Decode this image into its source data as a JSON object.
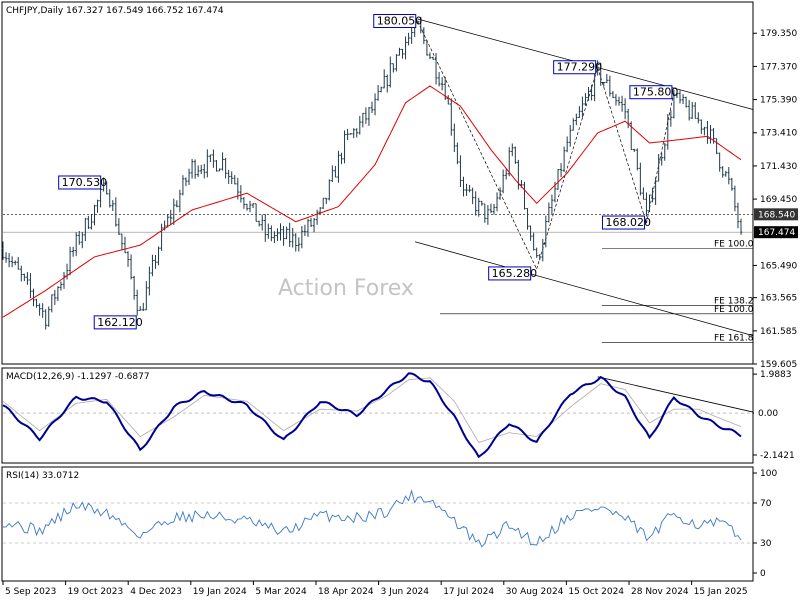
{
  "chart_data": {
    "type": "candlestick",
    "symbol_line": "CHFJPY,Daily  167.327 167.549 166.752 167.474",
    "watermark": "Action Forex",
    "price_axis": {
      "range": [
        159.605,
        181.215
      ],
      "ticks": [
        "179.350",
        "177.370",
        "175.390",
        "173.410",
        "171.430",
        "169.450",
        "165.490",
        "163.565",
        "161.585",
        "159.605"
      ]
    },
    "current_price": {
      "value": 167.474,
      "label": "167.474"
    },
    "level_tag": {
      "value": 168.54,
      "label": "168.540"
    },
    "x_labels": [
      "5 Sep 2023",
      "19 Oct 2023",
      "4 Dec 2023",
      "19 Jan 2024",
      "5 Mar 2024",
      "18 Apr 2024",
      "3 Jun 2024",
      "17 Jul 2024",
      "30 Aug 2024",
      "15 Oct 2024",
      "28 Nov 2024",
      "15 Jan 2025"
    ],
    "swing_labels": [
      {
        "label": "180.050",
        "bar": 136,
        "price": 180.05
      },
      {
        "label": "170.530",
        "bar": 34,
        "price": 170.53
      },
      {
        "label": "162.120",
        "bar": 45,
        "price": 162.12
      },
      {
        "label": "177.290",
        "bar": 195,
        "price": 177.29
      },
      {
        "label": "175.800",
        "bar": 220,
        "price": 175.8
      },
      {
        "label": "168.020",
        "bar": 211,
        "price": 168.02
      },
      {
        "label": "165.280",
        "bar": 175,
        "price": 165.28
      }
    ],
    "fibo_levels": [
      {
        "label": "FE 100.0",
        "price": 166.5
      },
      {
        "label": "FE 138.2",
        "price": 163.1
      },
      {
        "label": "FE 100.0",
        "price": 162.6
      },
      {
        "label": "FE 161.8",
        "price": 160.9
      }
    ],
    "anchors": [
      [
        0,
        166.5
      ],
      [
        14,
        162.4
      ],
      [
        24,
        166.8
      ],
      [
        34,
        170.3
      ],
      [
        45,
        162.6
      ],
      [
        52,
        167.3
      ],
      [
        62,
        171.4
      ],
      [
        72,
        171.7
      ],
      [
        86,
        167.4
      ],
      [
        96,
        167.0
      ],
      [
        104,
        168.5
      ],
      [
        112,
        172.8
      ],
      [
        122,
        175.0
      ],
      [
        130,
        178.4
      ],
      [
        136,
        179.7
      ],
      [
        145,
        176.0
      ],
      [
        151,
        169.8
      ],
      [
        160,
        168.3
      ],
      [
        167,
        172.4
      ],
      [
        175,
        165.7
      ],
      [
        185,
        172.8
      ],
      [
        195,
        177.0
      ],
      [
        204,
        174.7
      ],
      [
        211,
        168.4
      ],
      [
        220,
        175.5
      ],
      [
        231,
        173.6
      ],
      [
        238,
        170.4
      ],
      [
        242,
        167.474
      ]
    ],
    "ma": [
      [
        0,
        162.4
      ],
      [
        14,
        164.0
      ],
      [
        30,
        166.0
      ],
      [
        45,
        166.7
      ],
      [
        62,
        168.8
      ],
      [
        80,
        169.8
      ],
      [
        96,
        168.1
      ],
      [
        110,
        169.0
      ],
      [
        122,
        171.5
      ],
      [
        132,
        175.2
      ],
      [
        140,
        176.2
      ],
      [
        150,
        175.0
      ],
      [
        160,
        172.4
      ],
      [
        168,
        170.6
      ],
      [
        175,
        169.2
      ],
      [
        185,
        171.0
      ],
      [
        195,
        173.4
      ],
      [
        204,
        174.1
      ],
      [
        212,
        172.8
      ],
      [
        222,
        173.0
      ],
      [
        231,
        173.2
      ],
      [
        242,
        171.8
      ]
    ],
    "macd": {
      "title": "MACD(12,26,9) -1.1297 -0.6877",
      "range": [
        -2.55,
        2.3
      ],
      "ticks": [
        "1.9883",
        "0.00",
        "-2.1421"
      ],
      "current": "0.00",
      "points": [
        [
          0,
          0.4
        ],
        [
          12,
          -1.3
        ],
        [
          24,
          0.8
        ],
        [
          34,
          0.6
        ],
        [
          45,
          -1.9
        ],
        [
          56,
          0.3
        ],
        [
          66,
          1.1
        ],
        [
          80,
          0.4
        ],
        [
          92,
          -1.4
        ],
        [
          104,
          0.6
        ],
        [
          116,
          -0.1
        ],
        [
          126,
          1.2
        ],
        [
          133,
          2.0
        ],
        [
          140,
          1.6
        ],
        [
          148,
          -0.2
        ],
        [
          156,
          -2.3
        ],
        [
          166,
          -0.5
        ],
        [
          175,
          -1.5
        ],
        [
          186,
          1.0
        ],
        [
          196,
          1.8
        ],
        [
          204,
          0.8
        ],
        [
          212,
          -1.3
        ],
        [
          220,
          0.8
        ],
        [
          228,
          -0.1
        ],
        [
          234,
          -0.6
        ],
        [
          242,
          -1.13
        ]
      ],
      "signal": [
        [
          0,
          0.6
        ],
        [
          12,
          -0.9
        ],
        [
          24,
          0.5
        ],
        [
          34,
          0.7
        ],
        [
          45,
          -1.2
        ],
        [
          56,
          -0.2
        ],
        [
          66,
          0.9
        ],
        [
          80,
          0.6
        ],
        [
          92,
          -0.9
        ],
        [
          104,
          0.2
        ],
        [
          116,
          0.1
        ],
        [
          126,
          0.9
        ],
        [
          133,
          1.7
        ],
        [
          140,
          1.8
        ],
        [
          148,
          0.6
        ],
        [
          156,
          -1.5
        ],
        [
          166,
          -1.0
        ],
        [
          175,
          -1.2
        ],
        [
          186,
          0.3
        ],
        [
          196,
          1.5
        ],
        [
          204,
          1.2
        ],
        [
          212,
          -0.5
        ],
        [
          220,
          0.2
        ],
        [
          228,
          0.2
        ],
        [
          234,
          -0.2
        ],
        [
          242,
          -0.69
        ]
      ]
    },
    "rsi": {
      "title": "RSI(14) 33.0712",
      "range": [
        0,
        100
      ],
      "ticks": [
        "100",
        "70",
        "30",
        "0"
      ],
      "points": [
        [
          0,
          52
        ],
        [
          12,
          42
        ],
        [
          24,
          68
        ],
        [
          34,
          60
        ],
        [
          45,
          38
        ],
        [
          56,
          56
        ],
        [
          66,
          58
        ],
        [
          80,
          52
        ],
        [
          92,
          40
        ],
        [
          104,
          58
        ],
        [
          116,
          55
        ],
        [
          126,
          62
        ],
        [
          133,
          77
        ],
        [
          140,
          74
        ],
        [
          148,
          52
        ],
        [
          156,
          28
        ],
        [
          166,
          48
        ],
        [
          175,
          30
        ],
        [
          186,
          58
        ],
        [
          196,
          66
        ],
        [
          204,
          54
        ],
        [
          212,
          34
        ],
        [
          220,
          60
        ],
        [
          228,
          48
        ],
        [
          236,
          50
        ],
        [
          242,
          33
        ]
      ]
    }
  }
}
